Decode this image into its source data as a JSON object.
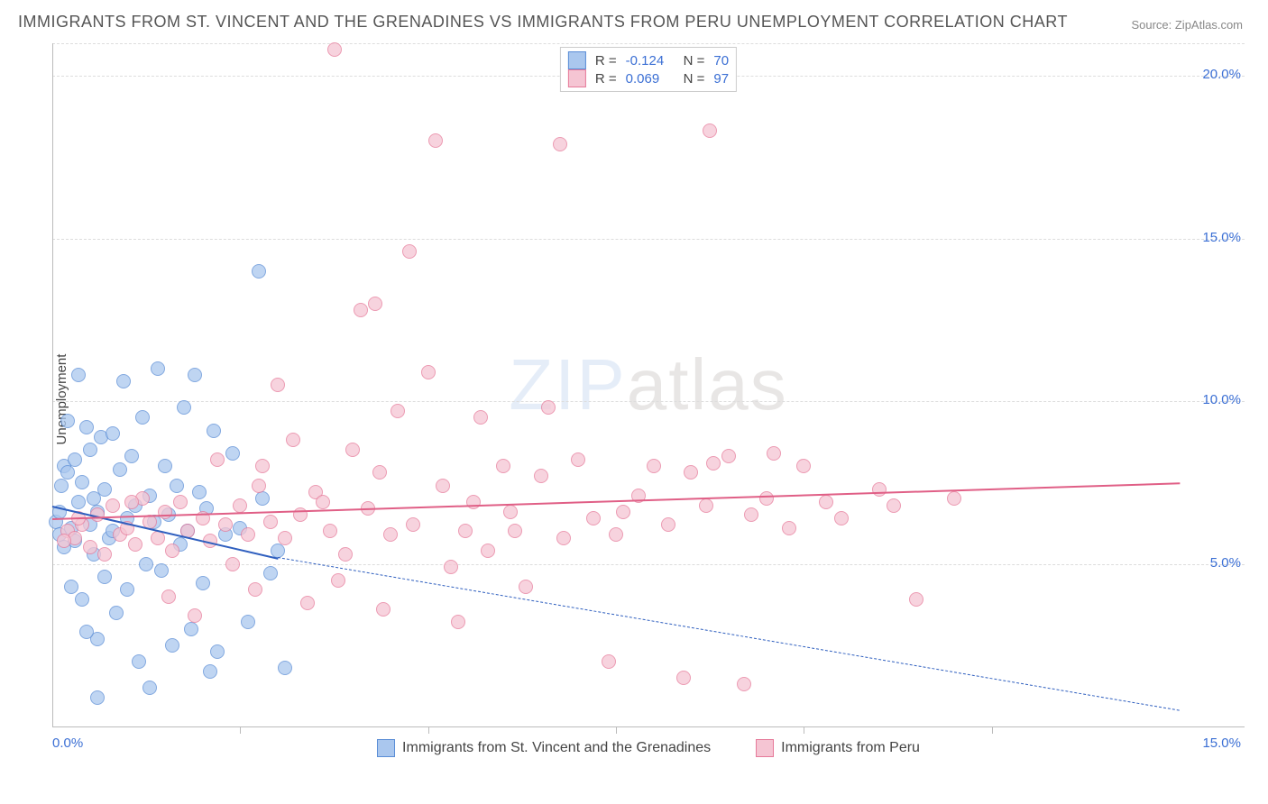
{
  "title": "IMMIGRANTS FROM ST. VINCENT AND THE GRENADINES VS IMMIGRANTS FROM PERU UNEMPLOYMENT CORRELATION CHART",
  "source": "Source: ZipAtlas.com",
  "ylabel": "Unemployment",
  "watermark_zip": "ZIP",
  "watermark_atlas": "atlas",
  "chart": {
    "type": "scatter",
    "xlim": [
      0,
      15
    ],
    "ylim": [
      0,
      21
    ],
    "background_color": "#ffffff",
    "grid_color": "#dddddd",
    "axis_color": "#bbbbbb",
    "tick_label_color": "#3b6fd4",
    "y_grid_lines": [
      5,
      10,
      15,
      20
    ],
    "y_tick_labels": [
      {
        "v": 5,
        "label": "5.0%"
      },
      {
        "v": 10,
        "label": "10.0%"
      },
      {
        "v": 15,
        "label": "15.0%"
      },
      {
        "v": 20,
        "label": "20.0%"
      }
    ],
    "x_tick_labels": [
      {
        "v": 0,
        "label": "0.0%"
      },
      {
        "v": 15,
        "label": "15.0%"
      }
    ],
    "x_tick_marks": [
      2.5,
      5,
      7.5,
      10,
      12.5
    ],
    "point_radius": 8,
    "point_border_width": 1.5,
    "point_fill_opacity": 0.25
  },
  "series": [
    {
      "name": "Immigrants from St. Vincent and the Grenadines",
      "color_border": "#5a8dd6",
      "color_fill": "#aac7ee",
      "r_label": "R =",
      "r_value": "-0.124",
      "n_label": "N =",
      "n_value": "70",
      "trend": {
        "x1": 0,
        "y1": 6.8,
        "x2": 3.0,
        "y2": 5.2,
        "extend_x2": 15,
        "extend_y2": 0.5,
        "color": "#2f5fbf"
      },
      "points": [
        [
          0.05,
          6.3
        ],
        [
          0.1,
          5.9
        ],
        [
          0.1,
          6.6
        ],
        [
          0.12,
          7.4
        ],
        [
          0.15,
          8.0
        ],
        [
          0.15,
          5.5
        ],
        [
          0.2,
          9.4
        ],
        [
          0.2,
          7.8
        ],
        [
          0.25,
          6.1
        ],
        [
          0.25,
          4.3
        ],
        [
          0.3,
          8.2
        ],
        [
          0.3,
          5.7
        ],
        [
          0.35,
          10.8
        ],
        [
          0.35,
          6.9
        ],
        [
          0.4,
          7.5
        ],
        [
          0.4,
          3.9
        ],
        [
          0.45,
          9.2
        ],
        [
          0.5,
          6.2
        ],
        [
          0.5,
          8.5
        ],
        [
          0.55,
          5.3
        ],
        [
          0.55,
          7.0
        ],
        [
          0.6,
          2.7
        ],
        [
          0.6,
          6.6
        ],
        [
          0.65,
          8.9
        ],
        [
          0.7,
          4.6
        ],
        [
          0.7,
          7.3
        ],
        [
          0.75,
          5.8
        ],
        [
          0.8,
          9.0
        ],
        [
          0.8,
          6.0
        ],
        [
          0.85,
          3.5
        ],
        [
          0.9,
          7.9
        ],
        [
          0.95,
          10.6
        ],
        [
          1.0,
          6.4
        ],
        [
          1.0,
          4.2
        ],
        [
          1.05,
          8.3
        ],
        [
          1.1,
          6.8
        ],
        [
          1.15,
          2.0
        ],
        [
          1.2,
          9.5
        ],
        [
          1.25,
          5.0
        ],
        [
          1.3,
          7.1
        ],
        [
          1.35,
          6.3
        ],
        [
          1.4,
          11.0
        ],
        [
          1.45,
          4.8
        ],
        [
          1.5,
          8.0
        ],
        [
          1.55,
          6.5
        ],
        [
          1.6,
          2.5
        ],
        [
          1.65,
          7.4
        ],
        [
          1.7,
          5.6
        ],
        [
          1.75,
          9.8
        ],
        [
          1.8,
          6.0
        ],
        [
          1.85,
          3.0
        ],
        [
          1.9,
          10.8
        ],
        [
          1.95,
          7.2
        ],
        [
          2.0,
          4.4
        ],
        [
          2.05,
          6.7
        ],
        [
          2.1,
          1.7
        ],
        [
          2.15,
          9.1
        ],
        [
          2.2,
          2.3
        ],
        [
          2.3,
          5.9
        ],
        [
          2.4,
          8.4
        ],
        [
          2.5,
          6.1
        ],
        [
          2.6,
          3.2
        ],
        [
          2.75,
          14.0
        ],
        [
          2.8,
          7.0
        ],
        [
          2.9,
          4.7
        ],
        [
          3.0,
          5.4
        ],
        [
          3.1,
          1.8
        ],
        [
          0.6,
          0.9
        ],
        [
          1.3,
          1.2
        ],
        [
          0.45,
          2.9
        ]
      ]
    },
    {
      "name": "Immigrants from Peru",
      "color_border": "#e67a9a",
      "color_fill": "#f5c5d3",
      "r_label": "R =",
      "r_value": "0.069",
      "n_label": "N =",
      "n_value": "97",
      "trend": {
        "x1": 0,
        "y1": 6.4,
        "x2": 15,
        "y2": 7.5,
        "color": "#e05f86"
      },
      "points": [
        [
          0.2,
          6.0
        ],
        [
          0.3,
          5.8
        ],
        [
          0.4,
          6.2
        ],
        [
          0.5,
          5.5
        ],
        [
          0.6,
          6.5
        ],
        [
          0.7,
          5.3
        ],
        [
          0.8,
          6.8
        ],
        [
          0.9,
          5.9
        ],
        [
          1.0,
          6.1
        ],
        [
          1.1,
          5.6
        ],
        [
          1.2,
          7.0
        ],
        [
          1.3,
          6.3
        ],
        [
          1.4,
          5.8
        ],
        [
          1.5,
          6.6
        ],
        [
          1.6,
          5.4
        ],
        [
          1.7,
          6.9
        ],
        [
          1.8,
          6.0
        ],
        [
          1.9,
          3.4
        ],
        [
          2.0,
          6.4
        ],
        [
          2.1,
          5.7
        ],
        [
          2.2,
          8.2
        ],
        [
          2.3,
          6.2
        ],
        [
          2.4,
          5.0
        ],
        [
          2.5,
          6.8
        ],
        [
          2.6,
          5.9
        ],
        [
          2.7,
          4.2
        ],
        [
          2.8,
          8.0
        ],
        [
          2.9,
          6.3
        ],
        [
          3.0,
          10.5
        ],
        [
          3.1,
          5.8
        ],
        [
          3.2,
          8.8
        ],
        [
          3.3,
          6.5
        ],
        [
          3.4,
          3.8
        ],
        [
          3.5,
          7.2
        ],
        [
          3.7,
          6.0
        ],
        [
          3.75,
          20.8
        ],
        [
          3.8,
          4.5
        ],
        [
          4.0,
          8.5
        ],
        [
          4.1,
          12.8
        ],
        [
          4.2,
          6.7
        ],
        [
          4.3,
          13.0
        ],
        [
          4.4,
          3.6
        ],
        [
          4.5,
          5.9
        ],
        [
          4.6,
          9.7
        ],
        [
          4.75,
          14.6
        ],
        [
          4.8,
          6.2
        ],
        [
          5.0,
          10.9
        ],
        [
          5.1,
          18.0
        ],
        [
          5.2,
          7.4
        ],
        [
          5.3,
          4.9
        ],
        [
          5.4,
          3.2
        ],
        [
          5.5,
          6.0
        ],
        [
          5.7,
          9.5
        ],
        [
          5.8,
          5.4
        ],
        [
          6.0,
          8.0
        ],
        [
          6.1,
          6.6
        ],
        [
          6.3,
          4.3
        ],
        [
          6.5,
          7.7
        ],
        [
          6.6,
          9.8
        ],
        [
          6.75,
          17.9
        ],
        [
          6.8,
          5.8
        ],
        [
          7.0,
          8.2
        ],
        [
          7.2,
          6.4
        ],
        [
          7.4,
          2.0
        ],
        [
          7.5,
          5.9
        ],
        [
          7.8,
          7.1
        ],
        [
          8.0,
          8.0
        ],
        [
          8.2,
          6.2
        ],
        [
          8.4,
          1.5
        ],
        [
          8.5,
          7.8
        ],
        [
          8.7,
          6.8
        ],
        [
          8.75,
          18.3
        ],
        [
          9.0,
          8.3
        ],
        [
          9.2,
          1.3
        ],
        [
          9.3,
          6.5
        ],
        [
          9.5,
          7.0
        ],
        [
          9.8,
          6.1
        ],
        [
          10.0,
          8.0
        ],
        [
          10.3,
          6.9
        ],
        [
          10.5,
          6.4
        ],
        [
          11.0,
          7.3
        ],
        [
          11.2,
          6.8
        ],
        [
          11.5,
          3.9
        ],
        [
          12.0,
          7.0
        ],
        [
          8.8,
          8.1
        ],
        [
          5.6,
          6.9
        ],
        [
          4.35,
          7.8
        ],
        [
          3.6,
          6.9
        ],
        [
          2.75,
          7.4
        ],
        [
          1.55,
          4.0
        ],
        [
          0.35,
          6.4
        ],
        [
          0.15,
          5.7
        ],
        [
          1.05,
          6.9
        ],
        [
          6.15,
          6.0
        ],
        [
          7.6,
          6.6
        ],
        [
          9.6,
          8.4
        ],
        [
          3.9,
          5.3
        ]
      ]
    }
  ],
  "bottom_legend": [
    {
      "swatch_border": "#5a8dd6",
      "swatch_fill": "#aac7ee",
      "label": "Immigrants from St. Vincent and the Grenadines"
    },
    {
      "swatch_border": "#e67a9a",
      "swatch_fill": "#f5c5d3",
      "label": "Immigrants from Peru"
    }
  ]
}
